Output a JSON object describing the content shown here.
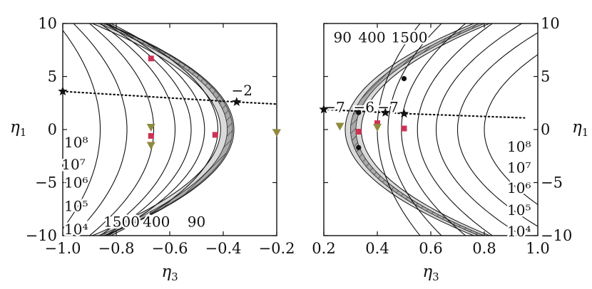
{
  "chart_data": [
    {
      "type": "line",
      "xlabel": "η3",
      "ylabel": "η1",
      "xlim": [
        -1.0,
        -0.2
      ],
      "ylim": [
        -10,
        10
      ],
      "x_ticks": [
        "−1.0",
        "−0.8",
        "−0.6",
        "−0.4",
        "−0.2"
      ],
      "y_ticks": [
        "10",
        "5",
        "0",
        "−5",
        "−10"
      ],
      "grid": false,
      "contour_labels": [
        {
          "text": "10⁸",
          "x": -0.95,
          "y": -1.2
        },
        {
          "text": "10⁷",
          "x": -0.96,
          "y": -3.3
        },
        {
          "text": "10⁶",
          "x": -0.95,
          "y": -5.0
        },
        {
          "text": "10⁵",
          "x": -0.95,
          "y": -7.2
        },
        {
          "text": "10⁴",
          "x": -0.95,
          "y": -9.4
        },
        {
          "text": "1500",
          "x": -0.78,
          "y": -8.7
        },
        {
          "text": "400",
          "x": -0.65,
          "y": -8.7
        },
        {
          "text": "90",
          "x": -0.5,
          "y": -8.7
        },
        {
          "text": "−2",
          "x": -0.33,
          "y": 3.7
        }
      ],
      "contour_vertices": [
        -0.86,
        -0.76,
        -0.66,
        -0.58,
        -0.52,
        -0.47,
        -0.42
      ],
      "band_vertex": -0.41,
      "band_vertex_lower": -0.36,
      "hatched_inner_vertex": -0.385,
      "hatched_outer_vertex": -0.365,
      "stars": [
        {
          "x": -1.0,
          "y": 3.6
        },
        {
          "x": -0.35,
          "y": 2.6
        }
      ],
      "square_markers": [
        {
          "x": -0.67,
          "y": 6.7
        },
        {
          "x": -0.67,
          "y": -0.6
        },
        {
          "x": -0.43,
          "y": -0.5
        }
      ],
      "triangle_markers": [
        {
          "x": -0.67,
          "y": 0.2
        },
        {
          "x": -0.67,
          "y": -1.5
        },
        {
          "x": -0.2,
          "y": -0.3
        }
      ],
      "dotted_line": {
        "x": [
          -1.0,
          -0.35,
          -0.2
        ],
        "y": [
          3.6,
          2.6,
          2.4
        ]
      }
    },
    {
      "type": "line",
      "xlabel": "η3",
      "ylabel": "η1",
      "xlim": [
        0.2,
        1.0
      ],
      "ylim": [
        -10,
        10
      ],
      "x_ticks": [
        "0.2",
        "0.4",
        "0.6",
        "0.8",
        "1.0"
      ],
      "y_ticks": [
        "10",
        "5",
        "0",
        "−5",
        "−10"
      ],
      "grid": false,
      "contour_labels": [
        {
          "text": "90",
          "x": 0.27,
          "y": 8.7
        },
        {
          "text": "400",
          "x": 0.38,
          "y": 8.7
        },
        {
          "text": "1500",
          "x": 0.52,
          "y": 8.7
        },
        {
          "text": "−7",
          "x": 0.24,
          "y": 2.1
        },
        {
          "text": "−6",
          "x": 0.35,
          "y": 2.1
        },
        {
          "text": "−7",
          "x": 0.44,
          "y": 2.1
        },
        {
          "text": "10⁸",
          "x": 0.93,
          "y": -1.6
        },
        {
          "text": "10⁷",
          "x": 0.93,
          "y": -3.6
        },
        {
          "text": "10⁶",
          "x": 0.93,
          "y": -5.5
        },
        {
          "text": "10⁵",
          "x": 0.93,
          "y": -7.6
        },
        {
          "text": "10⁴",
          "x": 0.93,
          "y": -9.6
        }
      ],
      "contour_vertices": [
        0.4,
        0.44,
        0.49,
        0.55,
        0.62,
        0.7,
        0.8
      ],
      "band_vertex": 0.28,
      "band_vertex_lower": 0.34,
      "hatched_inner_vertex": 0.3,
      "hatched_outer_vertex": 0.32,
      "stars": [
        {
          "x": 0.2,
          "y": 1.9
        },
        {
          "x": 0.43,
          "y": 1.6
        },
        {
          "x": 0.5,
          "y": 1.5
        }
      ],
      "dots": [
        {
          "x": 0.5,
          "y": 4.8
        },
        {
          "x": 0.33,
          "y": 1.6
        },
        {
          "x": 0.33,
          "y": -1.7
        }
      ],
      "square_markers": [
        {
          "x": 0.33,
          "y": -0.2
        },
        {
          "x": 0.4,
          "y": 0.6
        },
        {
          "x": 0.5,
          "y": 0.1
        }
      ],
      "triangle_markers": [
        {
          "x": 0.26,
          "y": 0.3
        },
        {
          "x": 0.4,
          "y": 0.2
        }
      ],
      "dotted_line": {
        "x": [
          0.2,
          0.5,
          0.95
        ],
        "y": [
          1.9,
          1.5,
          1.1
        ]
      }
    }
  ],
  "colors": {
    "band": "#dadada",
    "hatch_fill": "#a9a9a9",
    "contour": "#111111",
    "square": "#cc3355",
    "triangle": "#8f8a3d"
  }
}
